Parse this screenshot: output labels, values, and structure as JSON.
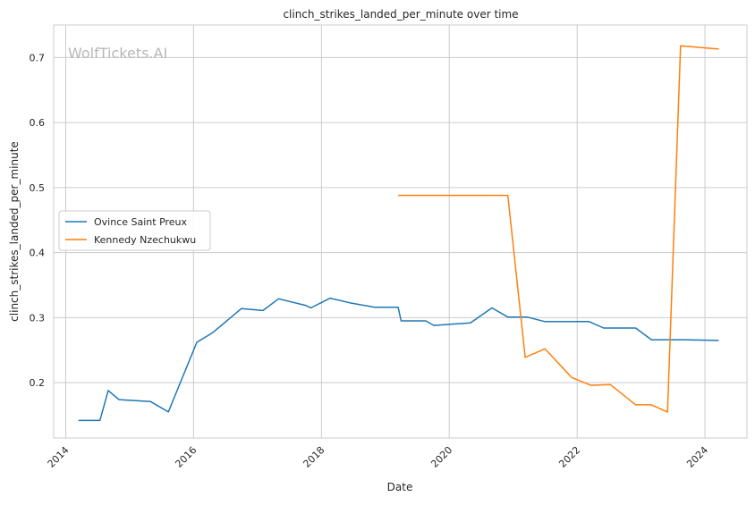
{
  "watermark": "WolfTickets.AI",
  "chart_data": {
    "type": "line",
    "title": "clinch_strikes_landed_per_minute over time",
    "xlabel": "Date",
    "ylabel": "clinch_strikes_landed_per_minute",
    "x_tick_labels": [
      "2014",
      "2016",
      "2018",
      "2020",
      "2022",
      "2024"
    ],
    "y_tick_labels": [
      "0.2",
      "0.3",
      "0.4",
      "0.5",
      "0.6",
      "0.7"
    ],
    "xlim": [
      "2013-10-24",
      "2024-08-28"
    ],
    "ylim": [
      0.115,
      0.75
    ],
    "grid": true,
    "legend_position": "center-left",
    "series": [
      {
        "name": "Ovince Saint Preux",
        "color": "#1f77b4",
        "points": [
          [
            "2014-03-15",
            0.142
          ],
          [
            "2014-07-15",
            0.142
          ],
          [
            "2014-09-01",
            0.188
          ],
          [
            "2014-11-01",
            0.174
          ],
          [
            "2015-05-01",
            0.171
          ],
          [
            "2015-08-10",
            0.155
          ],
          [
            "2016-01-20",
            0.262
          ],
          [
            "2016-04-20",
            0.277
          ],
          [
            "2016-10-01",
            0.314
          ],
          [
            "2017-02-01",
            0.311
          ],
          [
            "2017-05-01",
            0.329
          ],
          [
            "2017-10-01",
            0.319
          ],
          [
            "2017-11-01",
            0.315
          ],
          [
            "2018-02-20",
            0.33
          ],
          [
            "2018-06-10",
            0.323
          ],
          [
            "2018-11-01",
            0.316
          ],
          [
            "2019-03-15",
            0.316
          ],
          [
            "2019-04-01",
            0.295
          ],
          [
            "2019-08-20",
            0.295
          ],
          [
            "2019-10-05",
            0.288
          ],
          [
            "2020-05-01",
            0.292
          ],
          [
            "2020-09-01",
            0.315
          ],
          [
            "2020-12-01",
            0.301
          ],
          [
            "2021-03-20",
            0.301
          ],
          [
            "2021-07-01",
            0.294
          ],
          [
            "2022-03-10",
            0.294
          ],
          [
            "2022-06-01",
            0.284
          ],
          [
            "2022-12-01",
            0.284
          ],
          [
            "2023-03-01",
            0.266
          ],
          [
            "2023-09-01",
            0.266
          ],
          [
            "2024-03-20",
            0.265
          ]
        ]
      },
      {
        "name": "Kennedy Nzechukwu",
        "color": "#ff7f0e",
        "points": [
          [
            "2019-03-15",
            0.488
          ],
          [
            "2020-12-01",
            0.488
          ],
          [
            "2021-03-10",
            0.239
          ],
          [
            "2021-07-01",
            0.252
          ],
          [
            "2021-12-01",
            0.208
          ],
          [
            "2022-03-20",
            0.196
          ],
          [
            "2022-07-10",
            0.197
          ],
          [
            "2022-12-01",
            0.166
          ],
          [
            "2023-03-01",
            0.166
          ],
          [
            "2023-06-01",
            0.155
          ],
          [
            "2023-08-15",
            0.718
          ],
          [
            "2024-03-20",
            0.713
          ]
        ]
      }
    ]
  }
}
